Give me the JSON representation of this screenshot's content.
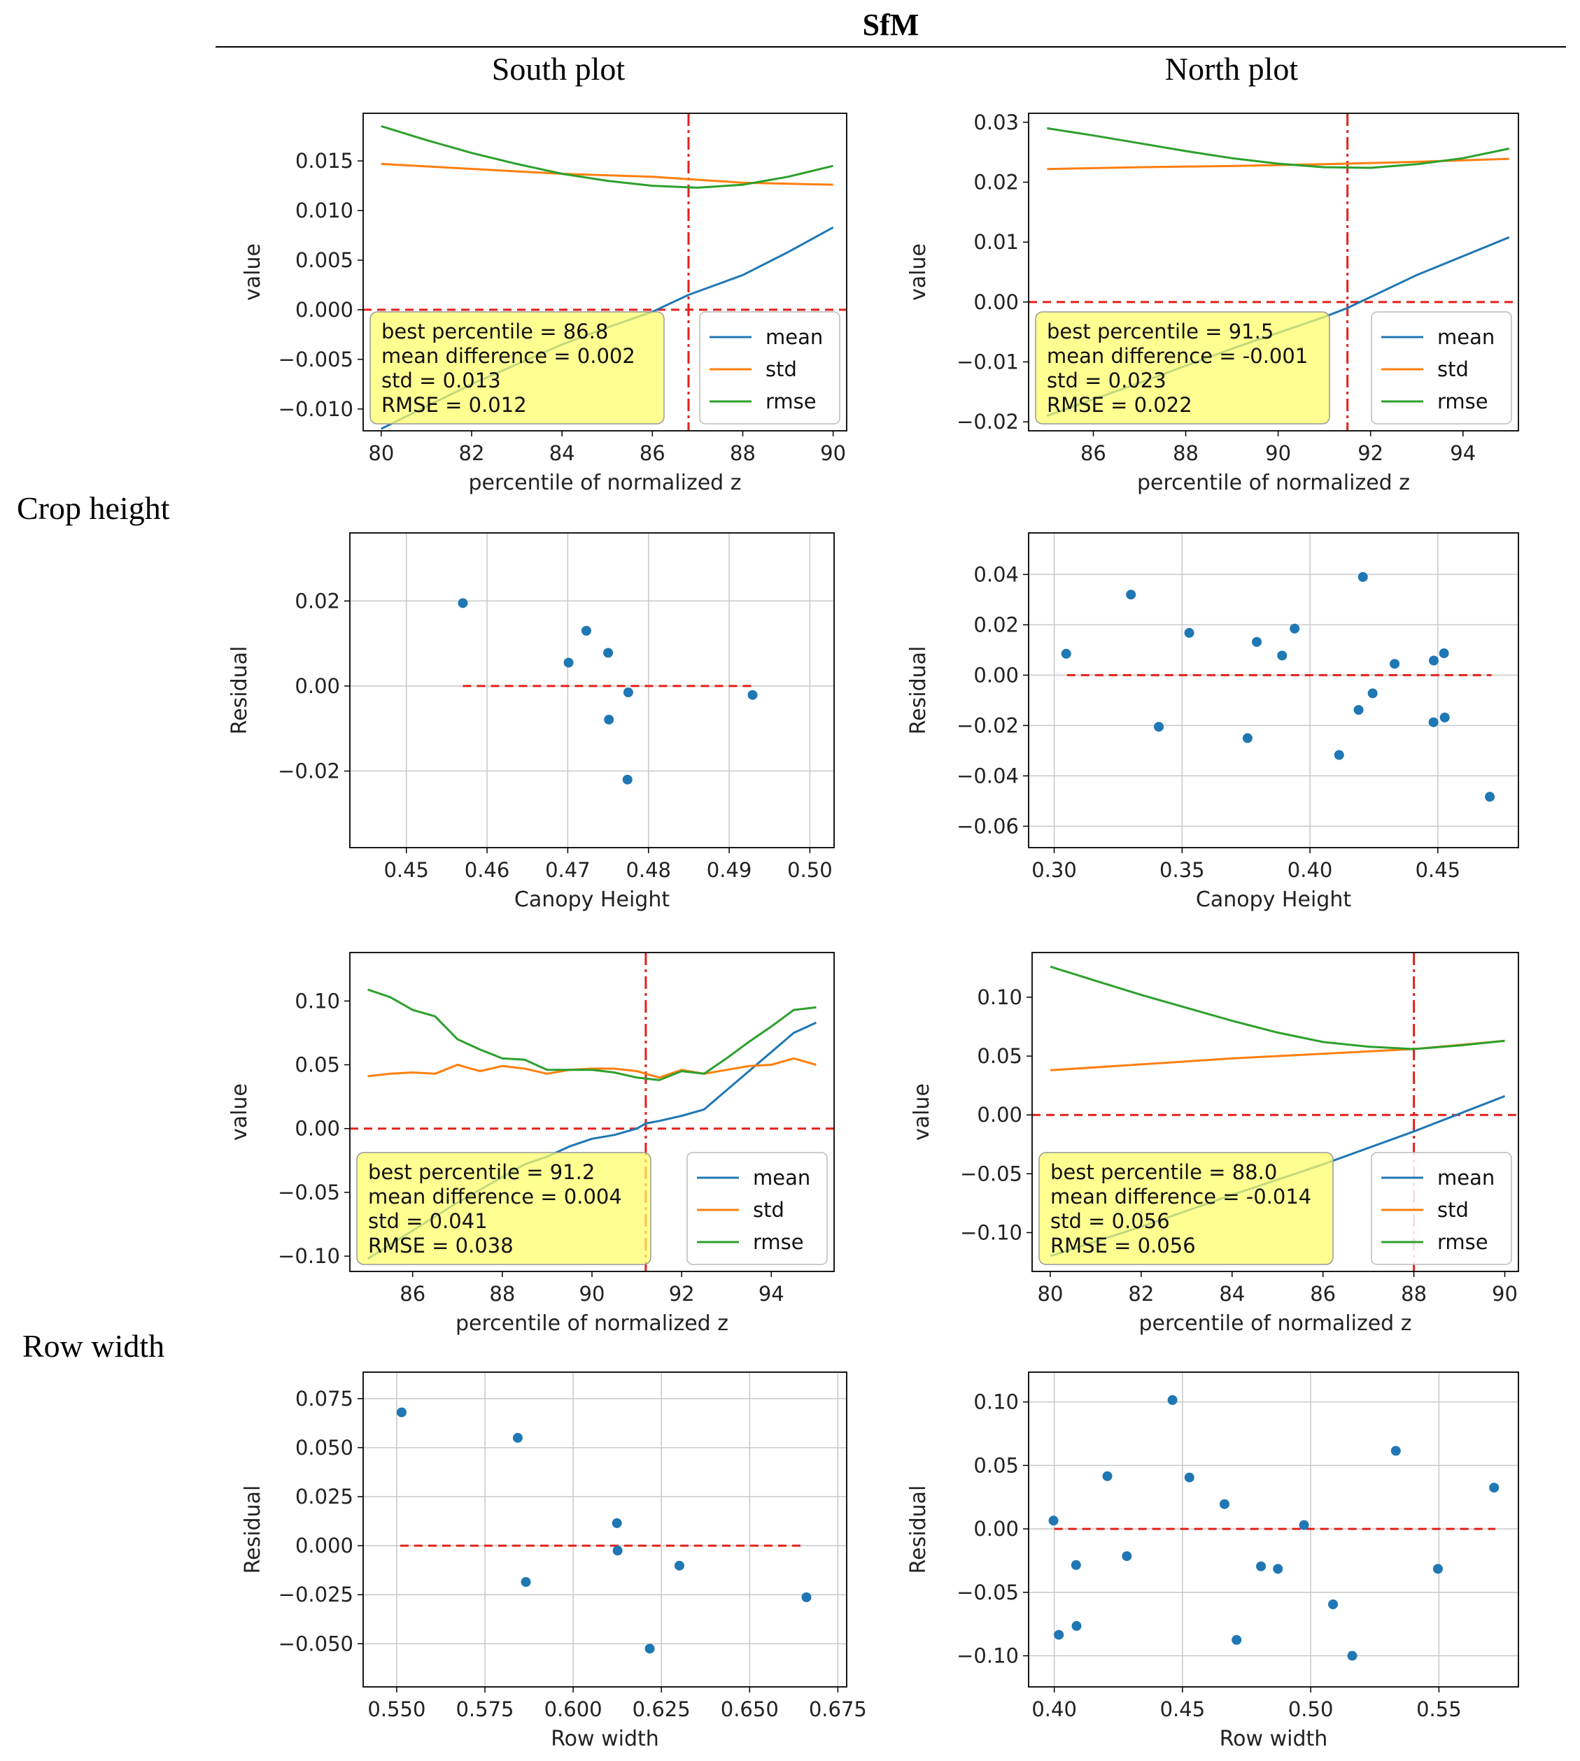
{
  "header": {
    "title": "SfM"
  },
  "columns": [
    "South plot",
    "North plot"
  ],
  "rows": [
    "Crop height",
    "Row width"
  ],
  "colors": {
    "mean": "#1f77b4",
    "std": "#ff7f0e",
    "rmse": "#2ca02c",
    "ref": "#e3201b",
    "point": "#1f77b4",
    "annot": "#ffff66",
    "grid": "#c8c8c8"
  },
  "legend": {
    "mean": "mean",
    "std": "std",
    "rmse": "rmse"
  },
  "chart_data": [
    {
      "id": "ch_south_pct",
      "type": "line",
      "xlabel": "percentile of normalized z",
      "ylabel": "value",
      "xlim": [
        79.6,
        90.3
      ],
      "ylim": [
        -0.0122,
        0.0198
      ],
      "xticks": [
        80,
        82,
        84,
        86,
        88,
        90
      ],
      "yticks": [
        -0.01,
        -0.005,
        0.0,
        0.005,
        0.01,
        0.015
      ],
      "ytick_labels": [
        "−0.010",
        "−0.005",
        "0.000",
        "0.005",
        "0.010",
        "0.015"
      ],
      "grid": false,
      "legend_position": "lower right",
      "best": 86.8,
      "annotation": [
        "best percentile = 86.8",
        "mean difference = 0.002",
        "std = 0.013",
        "RMSE = 0.012"
      ],
      "series": [
        {
          "name": "mean",
          "x": [
            80,
            82,
            84,
            85,
            86,
            86.8,
            88,
            89,
            90
          ],
          "y": [
            -0.012,
            -0.0075,
            -0.0035,
            -0.0018,
            -0.0002,
            0.0015,
            0.0035,
            0.0058,
            0.0083
          ]
        },
        {
          "name": "std",
          "x": [
            80,
            82,
            84,
            86,
            88,
            90
          ],
          "y": [
            0.0147,
            0.0142,
            0.0137,
            0.0134,
            0.0128,
            0.0126
          ]
        },
        {
          "name": "rmse",
          "x": [
            80,
            81,
            82,
            83,
            84,
            85,
            86,
            87,
            88,
            89,
            90
          ],
          "y": [
            0.0185,
            0.0171,
            0.0158,
            0.0147,
            0.0137,
            0.013,
            0.0125,
            0.0123,
            0.0126,
            0.0134,
            0.0145
          ]
        }
      ]
    },
    {
      "id": "ch_north_pct",
      "type": "line",
      "xlabel": "percentile of normalized z",
      "ylabel": "value",
      "xlim": [
        84.6,
        95.2
      ],
      "ylim": [
        -0.0215,
        0.0315
      ],
      "xticks": [
        86,
        88,
        90,
        92,
        94
      ],
      "yticks": [
        -0.02,
        -0.01,
        0.0,
        0.01,
        0.02,
        0.03
      ],
      "ytick_labels": [
        "−0.02",
        "−0.01",
        "0.00",
        "0.01",
        "0.02",
        "0.03"
      ],
      "grid": false,
      "legend_position": "lower right",
      "best": 91.5,
      "annotation": [
        "best percentile = 91.5",
        "mean difference = -0.001",
        "std = 0.023",
        "RMSE = 0.022"
      ],
      "series": [
        {
          "name": "mean",
          "x": [
            85,
            87,
            89,
            91,
            91.5,
            93,
            95
          ],
          "y": [
            -0.019,
            -0.0135,
            -0.0078,
            -0.0025,
            -0.001,
            0.0045,
            0.0108
          ]
        },
        {
          "name": "std",
          "x": [
            85,
            87,
            89,
            91,
            93,
            95
          ],
          "y": [
            0.0222,
            0.0225,
            0.0227,
            0.023,
            0.0234,
            0.0239
          ]
        },
        {
          "name": "rmse",
          "x": [
            85,
            86,
            87,
            88,
            89,
            90,
            91,
            92,
            93,
            94,
            95
          ],
          "y": [
            0.029,
            0.0278,
            0.0265,
            0.0252,
            0.024,
            0.0231,
            0.0225,
            0.0224,
            0.023,
            0.024,
            0.0256
          ]
        }
      ]
    },
    {
      "id": "res_south_ch",
      "type": "scatter",
      "xlabel": "Canopy Height",
      "ylabel": "Residual",
      "xlim": [
        0.443,
        0.503
      ],
      "ylim": [
        -0.038,
        0.036
      ],
      "xticks": [
        0.45,
        0.46,
        0.47,
        0.48,
        0.49,
        0.5
      ],
      "xtick_labels": [
        "0.45",
        "0.46",
        "0.47",
        "0.48",
        "0.49",
        "0.50"
      ],
      "yticks": [
        -0.02,
        0.0,
        0.02
      ],
      "ytick_labels": [
        "−0.02",
        "0.00",
        "0.02"
      ],
      "grid": true,
      "ref_range": [
        0.457,
        0.493
      ],
      "points": [
        [
          0.457,
          0.0195
        ],
        [
          0.4701,
          0.0055
        ],
        [
          0.4723,
          0.013
        ],
        [
          0.475,
          0.0078
        ],
        [
          0.4751,
          -0.0079
        ],
        [
          0.4775,
          -0.0015
        ],
        [
          0.4774,
          -0.022
        ],
        [
          0.4929,
          -0.0021
        ]
      ]
    },
    {
      "id": "res_north_ch",
      "type": "scatter",
      "xlabel": "Canopy Height",
      "ylabel": "Residual",
      "xlim": [
        0.29,
        0.4815
      ],
      "ylim": [
        -0.0685,
        0.0565
      ],
      "xticks": [
        0.3,
        0.35,
        0.4,
        0.45
      ],
      "xtick_labels": [
        "0.30",
        "0.35",
        "0.40",
        "0.45"
      ],
      "yticks": [
        -0.06,
        -0.04,
        -0.02,
        0.0,
        0.02,
        0.04
      ],
      "ytick_labels": [
        "−0.06",
        "−0.04",
        "−0.02",
        "0.00",
        "0.02",
        "0.04"
      ],
      "grid": true,
      "ref_range": [
        0.305,
        0.471
      ],
      "points": [
        [
          0.3047,
          0.0085
        ],
        [
          0.33,
          0.032
        ],
        [
          0.3409,
          -0.0205
        ],
        [
          0.3528,
          0.0168
        ],
        [
          0.3756,
          -0.025
        ],
        [
          0.3792,
          0.0132
        ],
        [
          0.3891,
          0.0078
        ],
        [
          0.394,
          0.0185
        ],
        [
          0.4114,
          -0.0317
        ],
        [
          0.419,
          -0.0138
        ],
        [
          0.4207,
          0.039
        ],
        [
          0.4245,
          -0.0072
        ],
        [
          0.4331,
          0.0045
        ],
        [
          0.4483,
          -0.0187
        ],
        [
          0.4484,
          0.0058
        ],
        [
          0.4524,
          0.0087
        ],
        [
          0.4527,
          -0.0168
        ],
        [
          0.4703,
          -0.0483
        ]
      ]
    },
    {
      "id": "rw_south_pct",
      "type": "line",
      "xlabel": "percentile of normalized z",
      "ylabel": "value",
      "xlim": [
        84.6,
        95.4
      ],
      "ylim": [
        -0.112,
        0.138
      ],
      "xticks": [
        86,
        88,
        90,
        92,
        94
      ],
      "yticks": [
        -0.1,
        -0.05,
        0.0,
        0.05,
        0.1
      ],
      "ytick_labels": [
        "−0.10",
        "−0.05",
        "0.00",
        "0.05",
        "0.10"
      ],
      "grid": false,
      "legend_position": "lower right",
      "best": 91.2,
      "annotation": [
        "best percentile = 91.2",
        "mean difference = 0.004",
        "std = 0.041",
        "RMSE = 0.038"
      ],
      "series": [
        {
          "name": "mean",
          "x": [
            85,
            86,
            87,
            88,
            88.5,
            89,
            89.5,
            90,
            90.5,
            91,
            91.2,
            91.5,
            92,
            92.5,
            93,
            93.5,
            94,
            94.5,
            95
          ],
          "y": [
            -0.102,
            -0.08,
            -0.058,
            -0.038,
            -0.028,
            -0.022,
            -0.014,
            -0.008,
            -0.005,
            0.0,
            0.004,
            0.006,
            0.01,
            0.015,
            0.03,
            0.045,
            0.06,
            0.075,
            0.083
          ]
        },
        {
          "name": "std",
          "x": [
            85,
            85.5,
            86,
            86.5,
            87,
            87.5,
            88,
            88.5,
            89,
            89.5,
            90,
            90.5,
            91,
            91.5,
            92,
            92.5,
            93,
            93.5,
            94,
            94.5,
            95
          ],
          "y": [
            0.041,
            0.043,
            0.044,
            0.043,
            0.05,
            0.045,
            0.049,
            0.047,
            0.043,
            0.046,
            0.047,
            0.047,
            0.045,
            0.04,
            0.046,
            0.043,
            0.046,
            0.049,
            0.05,
            0.055,
            0.05
          ]
        },
        {
          "name": "rmse",
          "x": [
            85,
            85.5,
            86,
            86.5,
            87,
            87.5,
            88,
            88.5,
            89,
            89.5,
            90,
            90.5,
            91,
            91.5,
            92,
            92.5,
            93,
            93.5,
            94,
            94.5,
            95
          ],
          "y": [
            0.109,
            0.103,
            0.093,
            0.088,
            0.07,
            0.062,
            0.055,
            0.054,
            0.046,
            0.046,
            0.046,
            0.044,
            0.04,
            0.038,
            0.045,
            0.043,
            0.055,
            0.068,
            0.08,
            0.093,
            0.095
          ]
        }
      ]
    },
    {
      "id": "rw_north_pct",
      "type": "line",
      "xlabel": "percentile of normalized z",
      "ylabel": "value",
      "xlim": [
        79.6,
        90.3
      ],
      "ylim": [
        -0.133,
        0.138
      ],
      "xticks": [
        80,
        82,
        84,
        86,
        88,
        90
      ],
      "yticks": [
        -0.1,
        -0.05,
        0.0,
        0.05,
        0.1
      ],
      "ytick_labels": [
        "−0.10",
        "−0.05",
        "0.00",
        "0.05",
        "0.10"
      ],
      "grid": false,
      "legend_position": "lower right",
      "best": 88.0,
      "annotation": [
        "best percentile = 88.0",
        "mean difference = -0.014",
        "std = 0.056",
        "RMSE = 0.056"
      ],
      "series": [
        {
          "name": "mean",
          "x": [
            80,
            82,
            84,
            86,
            88,
            90
          ],
          "y": [
            -0.12,
            -0.095,
            -0.068,
            -0.042,
            -0.014,
            0.016
          ]
        },
        {
          "name": "std",
          "x": [
            80,
            82,
            84,
            86,
            88,
            90
          ],
          "y": [
            0.038,
            0.043,
            0.048,
            0.052,
            0.056,
            0.063
          ]
        },
        {
          "name": "rmse",
          "x": [
            80,
            81,
            82,
            83,
            84,
            85,
            86,
            87,
            88,
            89,
            90
          ],
          "y": [
            0.126,
            0.114,
            0.102,
            0.091,
            0.08,
            0.07,
            0.062,
            0.058,
            0.056,
            0.059,
            0.063
          ]
        }
      ]
    },
    {
      "id": "res_south_rw",
      "type": "scatter",
      "xlabel": "Row width",
      "ylabel": "Residual",
      "xlim": [
        0.5405,
        0.6775
      ],
      "ylim": [
        -0.072,
        0.0885
      ],
      "xticks": [
        0.55,
        0.575,
        0.6,
        0.625,
        0.65,
        0.675
      ],
      "xtick_labels": [
        "0.550",
        "0.575",
        "0.600",
        "0.625",
        "0.650",
        "0.675"
      ],
      "yticks": [
        -0.05,
        -0.025,
        0.0,
        0.025,
        0.05,
        0.075
      ],
      "ytick_labels": [
        "−0.050",
        "−0.025",
        "0.000",
        "0.025",
        "0.050",
        "0.075"
      ],
      "grid": true,
      "ref_range": [
        0.551,
        0.666
      ],
      "points": [
        [
          0.5514,
          0.068
        ],
        [
          0.5843,
          0.055
        ],
        [
          0.5866,
          -0.0185
        ],
        [
          0.6124,
          0.0115
        ],
        [
          0.6126,
          -0.0025
        ],
        [
          0.6217,
          -0.0525
        ],
        [
          0.6301,
          -0.0102
        ],
        [
          0.6661,
          -0.0263
        ]
      ]
    },
    {
      "id": "res_north_rw",
      "type": "scatter",
      "xlabel": "Row width",
      "ylabel": "Residual",
      "xlim": [
        0.39,
        0.581
      ],
      "ylim": [
        -0.1245,
        0.1235
      ],
      "xticks": [
        0.4,
        0.45,
        0.5,
        0.55
      ],
      "xtick_labels": [
        "0.40",
        "0.45",
        "0.50",
        "0.55"
      ],
      "yticks": [
        -0.1,
        -0.05,
        0.0,
        0.05,
        0.1
      ],
      "ytick_labels": [
        "−0.10",
        "−0.05",
        "0.00",
        "0.05",
        "0.10"
      ],
      "grid": true,
      "ref_range": [
        0.4,
        0.572
      ],
      "points": [
        [
          0.3997,
          0.0065
        ],
        [
          0.4018,
          -0.0835
        ],
        [
          0.4085,
          -0.0285
        ],
        [
          0.4087,
          -0.0765
        ],
        [
          0.4207,
          0.0415
        ],
        [
          0.4283,
          -0.0215
        ],
        [
          0.4461,
          0.1015
        ],
        [
          0.4527,
          0.0405
        ],
        [
          0.4664,
          0.0195
        ],
        [
          0.4711,
          -0.0875
        ],
        [
          0.4806,
          -0.0295
        ],
        [
          0.4872,
          -0.0315
        ],
        [
          0.4974,
          0.003
        ],
        [
          0.5087,
          -0.0595
        ],
        [
          0.5162,
          -0.1
        ],
        [
          0.5332,
          0.0615
        ],
        [
          0.5496,
          -0.0315
        ],
        [
          0.5715,
          0.0325
        ]
      ]
    }
  ]
}
